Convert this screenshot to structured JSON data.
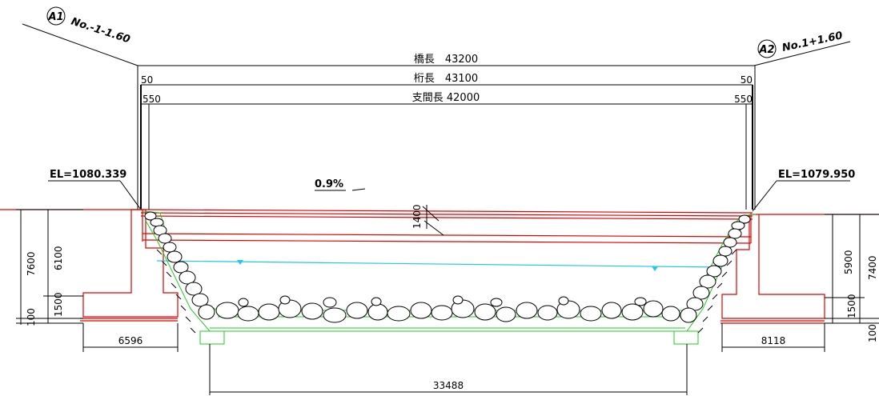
{
  "stations": {
    "a1": {
      "mark": "A1",
      "label": "No.-1-1.60"
    },
    "a2": {
      "mark": "A2",
      "label": "No.1+1.60"
    }
  },
  "lengths": {
    "bridge": "橋長　43200",
    "girder": "桁長　43100",
    "span": "支間長 42000",
    "left_girder_offset": "50",
    "right_girder_offset": "50",
    "left_span_offset": "550",
    "right_span_offset": "550"
  },
  "elevations": {
    "left": "EL=1080.339",
    "right": "EL=1079.950"
  },
  "slope": "0.9%",
  "girder_depth": "1400",
  "left_abutment": {
    "total_height": "7600",
    "wall_height": "6100",
    "footing_height": "1500",
    "base_height": "100",
    "footing_width": "6596"
  },
  "right_abutment": {
    "total_height": "7400",
    "wall_height": "5900",
    "footing_height": "1500",
    "base_height": "100",
    "footing_width": "8118"
  },
  "channel_width": "33488"
}
